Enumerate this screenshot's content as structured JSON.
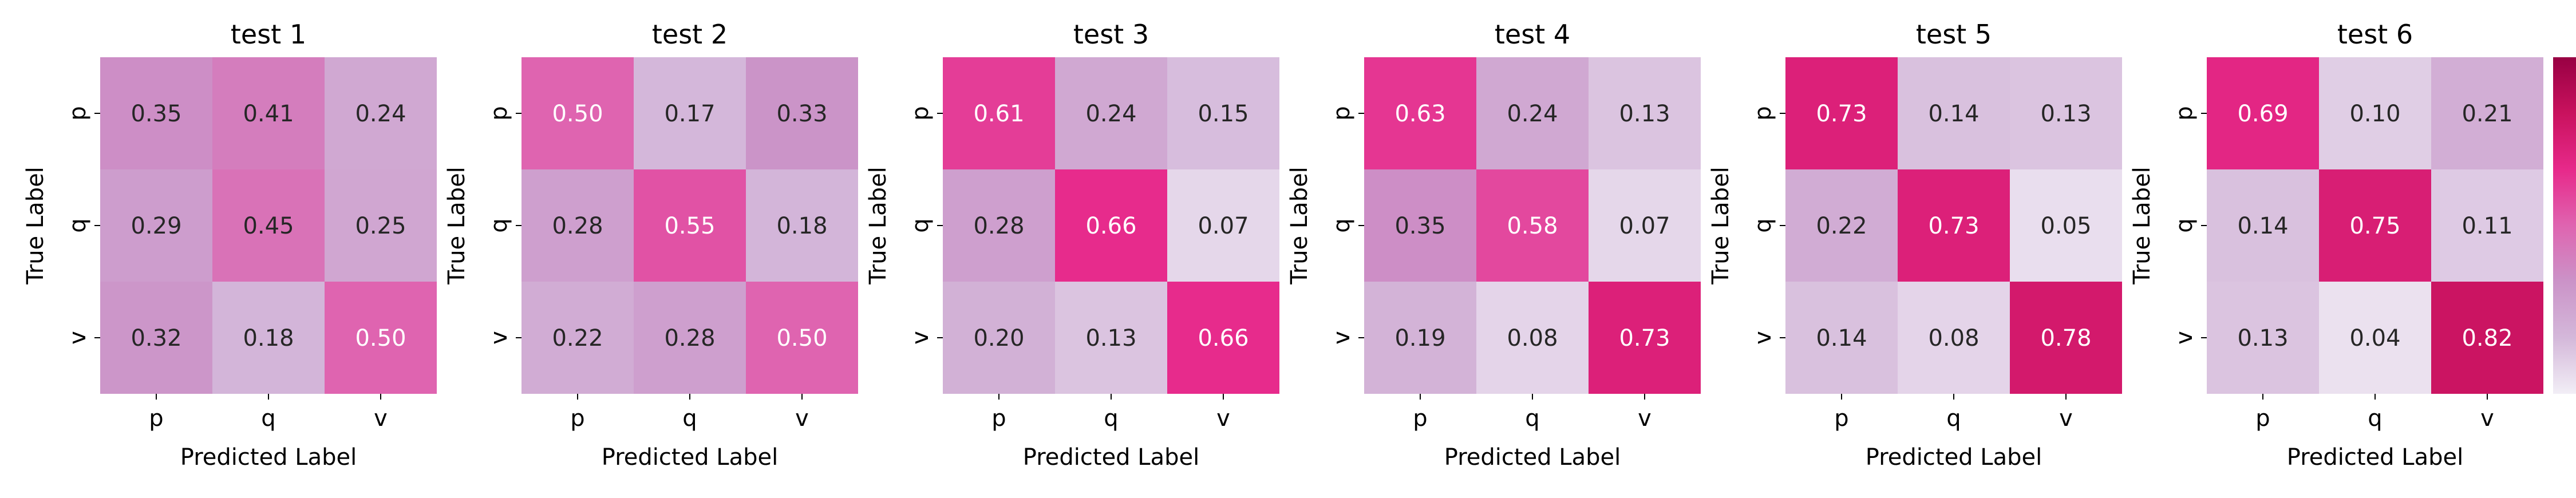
{
  "chart_data": [
    {
      "type": "heatmap",
      "title": "test 1",
      "xlabel": "Predicted Label",
      "ylabel": "True Label",
      "x_categories": [
        "p",
        "q",
        "v"
      ],
      "y_categories": [
        "p",
        "q",
        "v"
      ],
      "values": [
        [
          "0.35",
          "0.41",
          "0.24"
        ],
        [
          "0.29",
          "0.45",
          "0.25"
        ],
        [
          "0.32",
          "0.18",
          "0.50"
        ]
      ]
    },
    {
      "type": "heatmap",
      "title": "test 2",
      "xlabel": "Predicted Label",
      "ylabel": "True Label",
      "x_categories": [
        "p",
        "q",
        "v"
      ],
      "y_categories": [
        "p",
        "q",
        "v"
      ],
      "values": [
        [
          "0.50",
          "0.17",
          "0.33"
        ],
        [
          "0.28",
          "0.55",
          "0.18"
        ],
        [
          "0.22",
          "0.28",
          "0.50"
        ]
      ]
    },
    {
      "type": "heatmap",
      "title": "test 3",
      "xlabel": "Predicted Label",
      "ylabel": "True Label",
      "x_categories": [
        "p",
        "q",
        "v"
      ],
      "y_categories": [
        "p",
        "q",
        "v"
      ],
      "values": [
        [
          "0.61",
          "0.24",
          "0.15"
        ],
        [
          "0.28",
          "0.66",
          "0.07"
        ],
        [
          "0.20",
          "0.13",
          "0.66"
        ]
      ]
    },
    {
      "type": "heatmap",
      "title": "test 4",
      "xlabel": "Predicted Label",
      "ylabel": "True Label",
      "x_categories": [
        "p",
        "q",
        "v"
      ],
      "y_categories": [
        "p",
        "q",
        "v"
      ],
      "values": [
        [
          "0.63",
          "0.24",
          "0.13"
        ],
        [
          "0.35",
          "0.58",
          "0.07"
        ],
        [
          "0.19",
          "0.08",
          "0.73"
        ]
      ]
    },
    {
      "type": "heatmap",
      "title": "test 5",
      "xlabel": "Predicted Label",
      "ylabel": "True Label",
      "x_categories": [
        "p",
        "q",
        "v"
      ],
      "y_categories": [
        "p",
        "q",
        "v"
      ],
      "values": [
        [
          "0.73",
          "0.14",
          "0.13"
        ],
        [
          "0.22",
          "0.73",
          "0.05"
        ],
        [
          "0.14",
          "0.08",
          "0.78"
        ]
      ]
    },
    {
      "type": "heatmap",
      "title": "test 6",
      "xlabel": "Predicted Label",
      "ylabel": "True Label",
      "x_categories": [
        "p",
        "q",
        "v"
      ],
      "y_categories": [
        "p",
        "q",
        "v"
      ],
      "values": [
        [
          "0.69",
          "0.10",
          "0.21"
        ],
        [
          "0.14",
          "0.75",
          "0.11"
        ],
        [
          "0.13",
          "0.04",
          "0.82"
        ]
      ]
    }
  ],
  "colorbar": {
    "range": [
      0.0,
      1.0
    ],
    "ticks": [
      "0.0",
      "0.2",
      "0.4",
      "0.6",
      "0.8",
      "1.0"
    ],
    "colormap_stops": [
      "#f2eef6",
      "#d4b8da",
      "#cb93c8",
      "#df64b0",
      "#e7298a",
      "#c9125e",
      "#980043"
    ]
  }
}
